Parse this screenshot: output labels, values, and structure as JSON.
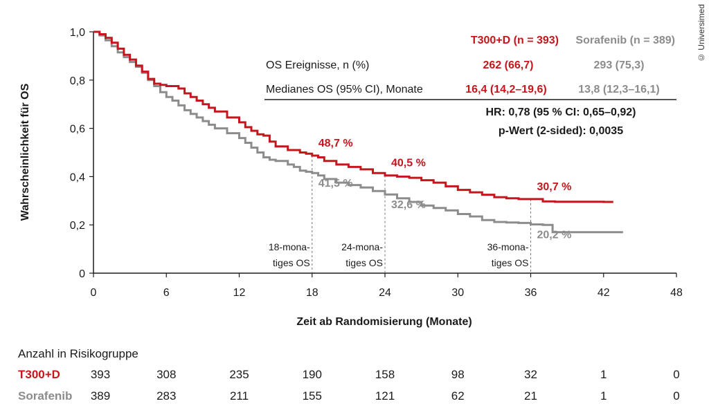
{
  "credit": "© Universimed",
  "chart_data": {
    "type": "line",
    "xlabel": "Zeit ab Randomisierung (Monate)",
    "ylabel": "Wahrscheinlichkeit für OS",
    "xlim": [
      0,
      48
    ],
    "ylim": [
      0,
      1.0
    ],
    "x_ticks": [
      0,
      6,
      12,
      18,
      24,
      30,
      36,
      42,
      48
    ],
    "y_ticks": [
      "0",
      "0,2",
      "0,4",
      "0,6",
      "0,8",
      "1,0"
    ],
    "y_tick_values": [
      0,
      0.2,
      0.4,
      0.6,
      0.8,
      1.0
    ],
    "grid": false,
    "series": [
      {
        "name": "T300+D (n = 393)",
        "color": "#c4161c",
        "points": [
          [
            0,
            1.0
          ],
          [
            0.5,
            0.99
          ],
          [
            1,
            0.975
          ],
          [
            1.5,
            0.955
          ],
          [
            2,
            0.93
          ],
          [
            2.5,
            0.905
          ],
          [
            3,
            0.885
          ],
          [
            3.5,
            0.86
          ],
          [
            4,
            0.835
          ],
          [
            4.5,
            0.805
          ],
          [
            5,
            0.785
          ],
          [
            5.5,
            0.78
          ],
          [
            6,
            0.775
          ],
          [
            6.5,
            0.775
          ],
          [
            7,
            0.765
          ],
          [
            7.5,
            0.745
          ],
          [
            8,
            0.73
          ],
          [
            8.5,
            0.715
          ],
          [
            9,
            0.7
          ],
          [
            9.5,
            0.685
          ],
          [
            10,
            0.67
          ],
          [
            11,
            0.645
          ],
          [
            12,
            0.625
          ],
          [
            12.5,
            0.605
          ],
          [
            13,
            0.59
          ],
          [
            13.5,
            0.575
          ],
          [
            14,
            0.57
          ],
          [
            14.5,
            0.545
          ],
          [
            15,
            0.525
          ],
          [
            16,
            0.51
          ],
          [
            17,
            0.5
          ],
          [
            17.5,
            0.495
          ],
          [
            18,
            0.487
          ],
          [
            18.5,
            0.48
          ],
          [
            19,
            0.465
          ],
          [
            20,
            0.45
          ],
          [
            21,
            0.44
          ],
          [
            22,
            0.43
          ],
          [
            23,
            0.415
          ],
          [
            24,
            0.405
          ],
          [
            25,
            0.4
          ],
          [
            26,
            0.395
          ],
          [
            27,
            0.385
          ],
          [
            28,
            0.375
          ],
          [
            29,
            0.36
          ],
          [
            30,
            0.345
          ],
          [
            31,
            0.335
          ],
          [
            32,
            0.325
          ],
          [
            33,
            0.315
          ],
          [
            34,
            0.31
          ],
          [
            35,
            0.307
          ],
          [
            36,
            0.307
          ],
          [
            36.5,
            0.307
          ],
          [
            37,
            0.297
          ],
          [
            38,
            0.296
          ],
          [
            40,
            0.296
          ],
          [
            42,
            0.295
          ],
          [
            42.8,
            0.295
          ]
        ]
      },
      {
        "name": "Sorafenib (n = 389)",
        "color": "#8c8c8c",
        "points": [
          [
            0,
            1.0
          ],
          [
            0.5,
            0.985
          ],
          [
            1,
            0.965
          ],
          [
            1.5,
            0.94
          ],
          [
            2,
            0.915
          ],
          [
            2.5,
            0.895
          ],
          [
            3,
            0.875
          ],
          [
            3.5,
            0.855
          ],
          [
            4,
            0.83
          ],
          [
            4.5,
            0.8
          ],
          [
            5,
            0.775
          ],
          [
            5.5,
            0.75
          ],
          [
            6,
            0.73
          ],
          [
            6.5,
            0.715
          ],
          [
            7,
            0.695
          ],
          [
            7.5,
            0.675
          ],
          [
            8,
            0.66
          ],
          [
            8.5,
            0.645
          ],
          [
            9,
            0.63
          ],
          [
            9.5,
            0.615
          ],
          [
            10,
            0.6
          ],
          [
            11,
            0.58
          ],
          [
            12,
            0.56
          ],
          [
            12.5,
            0.54
          ],
          [
            13,
            0.52
          ],
          [
            13.5,
            0.5
          ],
          [
            14,
            0.48
          ],
          [
            14.5,
            0.47
          ],
          [
            15,
            0.465
          ],
          [
            16,
            0.45
          ],
          [
            16.5,
            0.44
          ],
          [
            17,
            0.425
          ],
          [
            17.5,
            0.42
          ],
          [
            18,
            0.415
          ],
          [
            18.5,
            0.405
          ],
          [
            19,
            0.39
          ],
          [
            20,
            0.375
          ],
          [
            21,
            0.365
          ],
          [
            22,
            0.355
          ],
          [
            23,
            0.34
          ],
          [
            24,
            0.326
          ],
          [
            25,
            0.31
          ],
          [
            26,
            0.295
          ],
          [
            27,
            0.28
          ],
          [
            28,
            0.27
          ],
          [
            29,
            0.26
          ],
          [
            30,
            0.245
          ],
          [
            31,
            0.235
          ],
          [
            32,
            0.22
          ],
          [
            33,
            0.212
          ],
          [
            34,
            0.21
          ],
          [
            35,
            0.208
          ],
          [
            36,
            0.202
          ],
          [
            37,
            0.2
          ],
          [
            37.5,
            0.2
          ],
          [
            37.8,
            0.17
          ],
          [
            39,
            0.17
          ],
          [
            41,
            0.17
          ],
          [
            43.6,
            0.17
          ]
        ]
      }
    ],
    "landmarks": [
      {
        "x": 18,
        "label_lines": [
          "18-mona-",
          "tiges OS"
        ],
        "red": "48,7 %",
        "red_y": 0.487,
        "grey": "41,5 %",
        "grey_y": 0.415
      },
      {
        "x": 24,
        "label_lines": [
          "24-mona-",
          "tiges OS"
        ],
        "red": "40,5 %",
        "red_y": 0.405,
        "grey": "32,6 %",
        "grey_y": 0.326
      },
      {
        "x": 36,
        "label_lines": [
          "36-mona-",
          "tiges OS"
        ],
        "red": "30,7 %",
        "red_y": 0.307,
        "grey": "20,2 %",
        "grey_y": 0.202
      }
    ]
  },
  "table": {
    "header_red": "T300+D (n = 393)",
    "header_grey": "Sorafenib (n = 389)",
    "rows": [
      {
        "label": "OS Ereignisse, n (%)",
        "red": "262 (66,7)",
        "grey": "293 (75,3)"
      },
      {
        "label": "Medianes OS (95% CI), Monate",
        "red": "16,4 (14,2–19,6)",
        "grey": "13,8 (12,3–16,1)"
      }
    ],
    "hr": "HR: 0,78 (95 % CI: 0,65–0,92)",
    "p": "p-Wert (2-sided): 0,0035"
  },
  "risk": {
    "title": "Anzahl in Risikogruppe",
    "rows": [
      {
        "name": "T300+D",
        "values": [
          "393",
          "308",
          "235",
          "190",
          "158",
          "98",
          "32",
          "1",
          "0"
        ]
      },
      {
        "name": "Sorafenib",
        "values": [
          "389",
          "283",
          "211",
          "155",
          "121",
          "62",
          "21",
          "1",
          "0"
        ]
      }
    ]
  }
}
